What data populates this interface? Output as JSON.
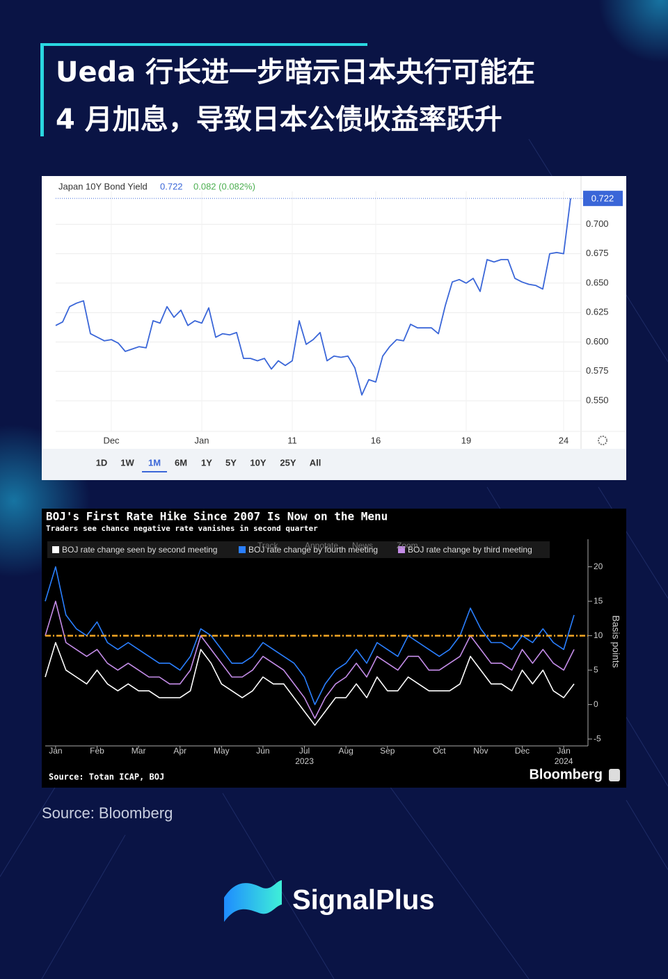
{
  "header": {
    "title_lines": [
      "Ueda 行长进一步暗示日本央行可能在",
      "4 月加息，导致日本公债收益率跃升"
    ]
  },
  "chart_data": [
    {
      "type": "line",
      "title": "Japan 10Y Bond Yield",
      "last_value": 0.722,
      "change_label": "0.082 (0.082%)",
      "color": "#3a66d8",
      "categories": [
        null,
        null,
        null,
        null,
        null,
        null,
        null,
        null,
        "Dec",
        null,
        null,
        null,
        null,
        null,
        null,
        null,
        null,
        null,
        null,
        null,
        null,
        "Jan",
        null,
        null,
        null,
        null,
        null,
        null,
        null,
        null,
        null,
        null,
        null,
        null,
        "11",
        null,
        null,
        null,
        null,
        null,
        null,
        null,
        null,
        null,
        null,
        null,
        "16",
        null,
        null,
        null,
        null,
        null,
        null,
        null,
        null,
        null,
        null,
        null,
        null,
        "19",
        null,
        null,
        null,
        null,
        null,
        null,
        null,
        null,
        null,
        null,
        null,
        null,
        null,
        "24",
        null
      ],
      "values": [
        0.614,
        0.617,
        0.63,
        0.633,
        0.635,
        0.607,
        0.604,
        0.601,
        0.602,
        0.599,
        0.592,
        0.594,
        0.596,
        0.595,
        0.618,
        0.616,
        0.63,
        0.621,
        0.627,
        0.614,
        0.618,
        0.616,
        0.629,
        0.604,
        0.607,
        0.606,
        0.608,
        0.586,
        0.586,
        0.584,
        0.586,
        0.577,
        0.584,
        0.58,
        0.584,
        0.618,
        0.598,
        0.602,
        0.608,
        0.584,
        0.588,
        0.587,
        0.588,
        0.578,
        0.555,
        0.568,
        0.566,
        0.588,
        0.596,
        0.602,
        0.601,
        0.615,
        0.612,
        0.612,
        0.612,
        0.607,
        0.631,
        0.651,
        0.653,
        0.65,
        0.654,
        0.643,
        0.67,
        0.668,
        0.67,
        0.67,
        0.654,
        0.651,
        0.649,
        0.648,
        0.645,
        0.675,
        0.676,
        0.675,
        0.722
      ],
      "ylim": [
        0.524,
        0.728
      ],
      "yticks": [
        {
          "value": 0.55,
          "label": "0.550"
        },
        {
          "value": 0.575,
          "label": "0.575"
        },
        {
          "value": 0.6,
          "label": "0.600"
        },
        {
          "value": 0.625,
          "label": "0.625"
        },
        {
          "value": 0.65,
          "label": "0.650"
        },
        {
          "value": 0.675,
          "label": "0.675"
        },
        {
          "value": 0.7,
          "label": "0.700"
        }
      ],
      "grid": true,
      "range_buttons": [
        "1D",
        "1W",
        "1M",
        "6M",
        "1Y",
        "5Y",
        "10Y",
        "25Y",
        "All"
      ],
      "selected_range": "1M"
    },
    {
      "type": "line",
      "title": "BOJ's First Rate Hike Since 2007 Is Now on the Menu",
      "subtitle": "Traders see chance negative rate vanishes in second quarter",
      "y_label": "Basis points",
      "source": "Source: Totan ICAP, BOJ",
      "brand": "Bloomberg",
      "toolbar": [
        "Track",
        "Annotate",
        "News",
        "Zoom"
      ],
      "categories": [
        null,
        "Jan",
        null,
        null,
        null,
        "Feb",
        null,
        null,
        null,
        "Mar",
        null,
        null,
        null,
        "Apr",
        null,
        null,
        null,
        "May",
        null,
        null,
        null,
        "Jun",
        null,
        null,
        null,
        "Jul",
        null,
        null,
        null,
        "Aug",
        null,
        null,
        null,
        "Sep",
        null,
        null,
        null,
        null,
        "Oct",
        null,
        null,
        null,
        "Nov",
        null,
        null,
        null,
        "Dec",
        null,
        null,
        null,
        "Jan",
        null
      ],
      "category_sublabels": [
        null,
        null,
        null,
        null,
        null,
        null,
        null,
        null,
        null,
        null,
        null,
        null,
        null,
        null,
        null,
        null,
        null,
        null,
        null,
        null,
        null,
        null,
        null,
        null,
        null,
        "2023",
        null,
        null,
        null,
        null,
        null,
        null,
        null,
        null,
        null,
        null,
        null,
        null,
        null,
        null,
        null,
        null,
        null,
        null,
        null,
        null,
        null,
        null,
        null,
        null,
        "2024",
        null
      ],
      "series": [
        {
          "name": "BOJ rate change seen by second meeting",
          "color": "#ffffff",
          "values": [
            4,
            9,
            5,
            4,
            3,
            5,
            3,
            2,
            3,
            2,
            2,
            1,
            1,
            1,
            2,
            8,
            6,
            3,
            2,
            1,
            2,
            4,
            3,
            3,
            1,
            -1,
            -3,
            -1,
            1,
            1,
            3,
            1,
            4,
            2,
            2,
            4,
            3,
            2,
            2,
            2,
            3,
            7,
            5,
            3,
            3,
            2,
            5,
            3,
            5,
            2,
            1,
            3
          ]
        },
        {
          "name": "BOJ rate change by fourth meeting",
          "color": "#2a7fff",
          "values": [
            15,
            20,
            13,
            11,
            10,
            12,
            9,
            8,
            9,
            8,
            7,
            6,
            6,
            5,
            7,
            11,
            10,
            8,
            6,
            6,
            7,
            9,
            8,
            7,
            6,
            4,
            0,
            3,
            5,
            6,
            8,
            6,
            9,
            8,
            7,
            10,
            9,
            8,
            7,
            8,
            10,
            14,
            11,
            9,
            9,
            8,
            10,
            9,
            11,
            9,
            8,
            13
          ]
        },
        {
          "name": "BOJ rate change by third meeting",
          "color": "#c48ce8",
          "values": [
            10,
            15,
            9,
            8,
            7,
            8,
            6,
            5,
            6,
            5,
            4,
            4,
            3,
            3,
            5,
            10,
            8,
            6,
            4,
            4,
            5,
            7,
            6,
            5,
            3,
            1,
            -2,
            1,
            3,
            4,
            6,
            4,
            7,
            6,
            5,
            7,
            7,
            5,
            5,
            6,
            7,
            10,
            8,
            6,
            6,
            5,
            8,
            6,
            8,
            6,
            5,
            8
          ]
        }
      ],
      "hline": 10,
      "hline_color": "#f5a623",
      "ylim": [
        -6,
        24
      ],
      "yticks": [
        -5,
        0,
        5,
        10,
        15,
        20
      ]
    }
  ],
  "source": "Source: Bloomberg",
  "brand": "SignalPlus"
}
